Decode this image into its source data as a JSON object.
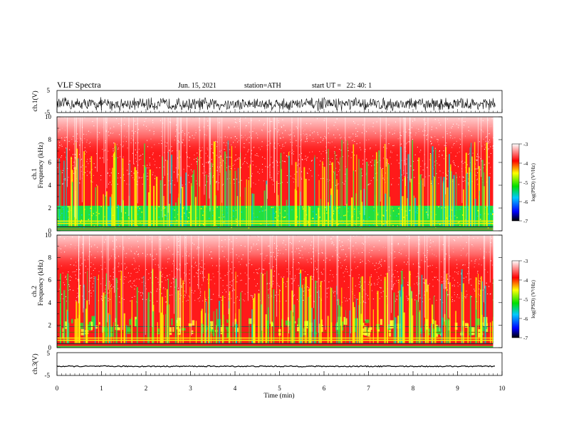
{
  "header": {
    "title": "VLF Spectra",
    "date": "Jun. 15, 2021",
    "station": "station=ATH",
    "start": "start UT =   22: 40: 1"
  },
  "chart_data": [
    {
      "type": "line",
      "name": "ch1-waveform",
      "ylabel": "ch.1(V)",
      "ylim": [
        -5,
        5
      ],
      "yticks": [
        "5",
        "-5"
      ],
      "xlim": [
        0,
        10
      ],
      "baseline": -1.2,
      "amplitude": 2.8
    },
    {
      "type": "heatmap",
      "name": "ch1-spectrogram",
      "channel_label": "ch.1",
      "ylabel": "Frequency (kHz)",
      "ylim": [
        0,
        10
      ],
      "yticks": [
        "0",
        "2",
        "4",
        "6",
        "8",
        "10"
      ],
      "xlim": [
        0,
        9.8
      ],
      "colorbar": {
        "label": "log(PSD) (V²/Hz)",
        "range": [
          -7,
          -3
        ],
        "ticks": [
          "-3",
          "-4",
          "-5",
          "-6",
          "-7"
        ]
      }
    },
    {
      "type": "heatmap",
      "name": "ch2-spectrogram",
      "channel_label": "ch.2",
      "ylabel": "Frequency (kHz)",
      "ylim": [
        0,
        10
      ],
      "yticks": [
        "0",
        "2",
        "4",
        "6",
        "8",
        "10"
      ],
      "xlim": [
        0,
        9.8
      ],
      "colorbar": {
        "label": "log(PSD) (V²/Hz)",
        "range": [
          -7,
          -3
        ],
        "ticks": [
          "-3",
          "-4",
          "-5",
          "-6",
          "-7"
        ]
      }
    },
    {
      "type": "line",
      "name": "ch3-waveform",
      "ylabel": "ch.3(V)",
      "ylim": [
        -5,
        5
      ],
      "yticks": [
        "5",
        "-5"
      ],
      "xlim": [
        0,
        10
      ],
      "baseline": -1.0,
      "amplitude": 0.25
    }
  ],
  "xaxis": {
    "label": "Time (min)",
    "range": [
      0,
      10
    ],
    "ticks": [
      "0",
      "1",
      "2",
      "3",
      "4",
      "5",
      "6",
      "7",
      "8",
      "9",
      "10"
    ]
  },
  "colors": {
    "low": "#000000",
    "mid": "#00e000",
    "high": "#ff0000",
    "top": "#ffffff"
  }
}
